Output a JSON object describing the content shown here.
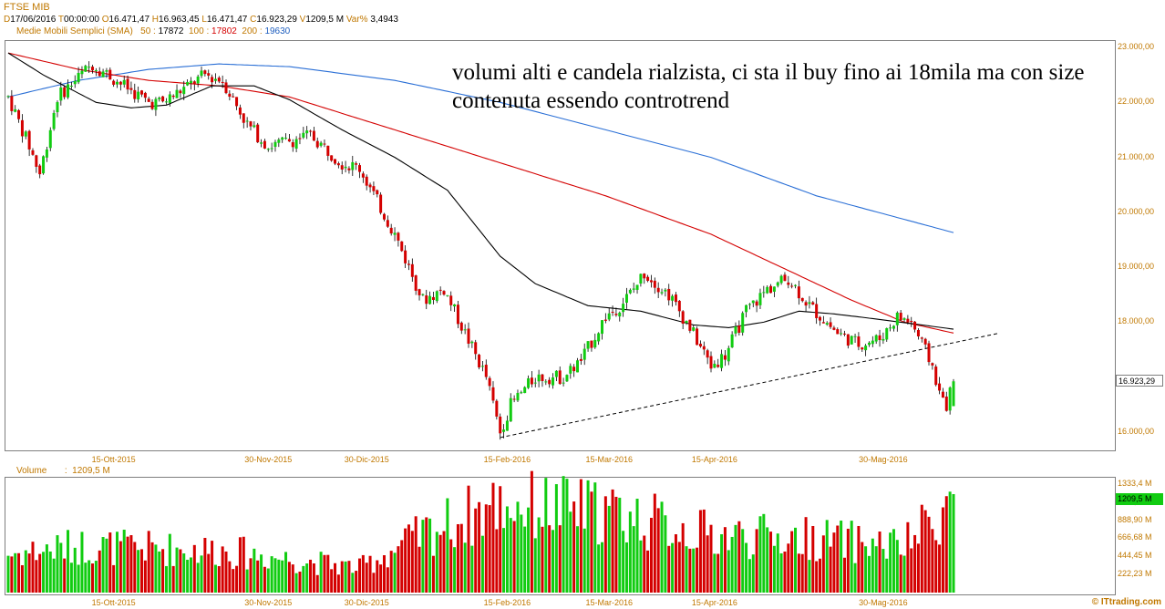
{
  "header": {
    "title": "FTSE MIB",
    "date_key": "D",
    "date": "17/06/2016",
    "time_key": "T",
    "time": "00:00:00",
    "open_key": "O",
    "open": "16.471,47",
    "high_key": "H",
    "high": "16.963,45",
    "low_key": "L",
    "low": "16.471,47",
    "close_key": "C",
    "close": "16.923,29",
    "vol_key": "V",
    "volume": "1209,5 M",
    "var_key": "Var%",
    "var": "3,4943"
  },
  "sma": {
    "label": "Medie Mobili Semplici (SMA)",
    "p50_label": "50 :",
    "p50": "17872",
    "p100_label": "100 :",
    "p100": "17802",
    "p200_label": "200 :",
    "p200": "19630",
    "colors": {
      "sma50": "#000000",
      "sma100": "#d40000",
      "sma200": "#2a6fd6"
    }
  },
  "comment": "volumi alti e candela rialzista, ci sta il buy fino ai 18mila ma con size contenuta essendo controtrend",
  "price_axis": [
    "23.000,00",
    "22.000,00",
    "21.000,00",
    "20.000,00",
    "19.000,00",
    "18.000,00",
    "16.000,00"
  ],
  "last_price": "16.923,29",
  "volume_label": {
    "name": "Volume",
    "sep": ":",
    "value": "1209,5 M"
  },
  "volume_axis": [
    "1333,4 M",
    "1111,1 M",
    "888,90 M",
    "666,68 M",
    "444,45 M",
    "222,23 M"
  ],
  "last_volume": "1209,5 M",
  "x_labels": [
    "15-Ott-2015",
    "30-Nov-2015",
    "30-Dic-2015",
    "15-Feb-2016",
    "15-Mar-2016",
    "15-Apr-2016",
    "30-Mag-2016"
  ],
  "credit": "© ITtrading.com",
  "colors": {
    "up": "#11cc11",
    "down": "#d40000",
    "accent": "#c07800"
  },
  "chart_data": {
    "type": "candlestick",
    "title": "FTSE MIB",
    "y_range": [
      15700,
      23100
    ],
    "volume_range_M": [
      0,
      1400
    ],
    "x_labels": [
      "15-Ott-2015",
      "30-Nov-2015",
      "30-Dic-2015",
      "15-Feb-2016",
      "15-Mar-2016",
      "15-Apr-2016",
      "30-Mag-2016"
    ],
    "last": {
      "date": "17/06/2016",
      "open": 16471.47,
      "high": 16963.45,
      "low": 16471.47,
      "close": 16923.29,
      "volume_M": 1209.5
    },
    "price_anchors": [
      {
        "i": 0,
        "p": 22100
      },
      {
        "i": 6,
        "p": 21200
      },
      {
        "i": 9,
        "p": 20700
      },
      {
        "i": 14,
        "p": 22100
      },
      {
        "i": 24,
        "p": 22700
      },
      {
        "i": 33,
        "p": 22300
      },
      {
        "i": 40,
        "p": 22000
      },
      {
        "i": 44,
        "p": 22000
      },
      {
        "i": 56,
        "p": 22500
      },
      {
        "i": 61,
        "p": 22400
      },
      {
        "i": 68,
        "p": 21600
      },
      {
        "i": 74,
        "p": 21200
      },
      {
        "i": 86,
        "p": 21400
      },
      {
        "i": 95,
        "p": 20900
      },
      {
        "i": 100,
        "p": 20800
      },
      {
        "i": 110,
        "p": 19600
      },
      {
        "i": 118,
        "p": 18400
      },
      {
        "i": 124,
        "p": 18600
      },
      {
        "i": 130,
        "p": 17800
      },
      {
        "i": 136,
        "p": 17000
      },
      {
        "i": 140,
        "p": 16000
      },
      {
        "i": 143,
        "p": 16500
      },
      {
        "i": 150,
        "p": 17000
      },
      {
        "i": 158,
        "p": 17000
      },
      {
        "i": 163,
        "p": 17300
      },
      {
        "i": 170,
        "p": 18100
      },
      {
        "i": 174,
        "p": 18300
      },
      {
        "i": 178,
        "p": 18600
      },
      {
        "i": 181,
        "p": 18900
      },
      {
        "i": 188,
        "p": 18500
      },
      {
        "i": 194,
        "p": 17900
      },
      {
        "i": 200,
        "p": 17200
      },
      {
        "i": 204,
        "p": 17400
      },
      {
        "i": 210,
        "p": 18200
      },
      {
        "i": 216,
        "p": 18600
      },
      {
        "i": 222,
        "p": 18800
      },
      {
        "i": 228,
        "p": 18300
      },
      {
        "i": 236,
        "p": 17800
      },
      {
        "i": 242,
        "p": 17600
      },
      {
        "i": 248,
        "p": 17700
      },
      {
        "i": 253,
        "p": 18100
      },
      {
        "i": 257,
        "p": 18000
      },
      {
        "i": 260,
        "p": 17600
      },
      {
        "i": 263,
        "p": 17200
      },
      {
        "i": 265,
        "p": 16700
      },
      {
        "i": 267,
        "p": 16500
      },
      {
        "i": 269,
        "p": 16900
      }
    ],
    "volume_anchors_M": [
      {
        "i": 0,
        "v": 500
      },
      {
        "i": 20,
        "v": 600
      },
      {
        "i": 60,
        "v": 550
      },
      {
        "i": 100,
        "v": 320
      },
      {
        "i": 120,
        "v": 800
      },
      {
        "i": 140,
        "v": 1150
      },
      {
        "i": 170,
        "v": 1050
      },
      {
        "i": 200,
        "v": 750
      },
      {
        "i": 230,
        "v": 700
      },
      {
        "i": 255,
        "v": 600
      },
      {
        "i": 269,
        "v": 1209.5
      }
    ],
    "sma50_anchors": [
      {
        "i": 0,
        "p": 22900
      },
      {
        "i": 10,
        "p": 22500
      },
      {
        "i": 25,
        "p": 22000
      },
      {
        "i": 35,
        "p": 21900
      },
      {
        "i": 45,
        "p": 21950
      },
      {
        "i": 58,
        "p": 22300
      },
      {
        "i": 70,
        "p": 22300
      },
      {
        "i": 80,
        "p": 22050
      },
      {
        "i": 95,
        "p": 21500
      },
      {
        "i": 110,
        "p": 21000
      },
      {
        "i": 125,
        "p": 20400
      },
      {
        "i": 140,
        "p": 19200
      },
      {
        "i": 150,
        "p": 18700
      },
      {
        "i": 165,
        "p": 18300
      },
      {
        "i": 180,
        "p": 18200
      },
      {
        "i": 195,
        "p": 17950
      },
      {
        "i": 205,
        "p": 17900
      },
      {
        "i": 215,
        "p": 18000
      },
      {
        "i": 225,
        "p": 18200
      },
      {
        "i": 235,
        "p": 18150
      },
      {
        "i": 248,
        "p": 18050
      },
      {
        "i": 260,
        "p": 17950
      },
      {
        "i": 269,
        "p": 17872
      }
    ],
    "sma100_anchors": [
      {
        "i": 0,
        "p": 22900
      },
      {
        "i": 20,
        "p": 22600
      },
      {
        "i": 40,
        "p": 22400
      },
      {
        "i": 60,
        "p": 22300
      },
      {
        "i": 80,
        "p": 22100
      },
      {
        "i": 110,
        "p": 21500
      },
      {
        "i": 140,
        "p": 20900
      },
      {
        "i": 170,
        "p": 20300
      },
      {
        "i": 200,
        "p": 19600
      },
      {
        "i": 220,
        "p": 19000
      },
      {
        "i": 240,
        "p": 18400
      },
      {
        "i": 255,
        "p": 18000
      },
      {
        "i": 269,
        "p": 17802
      }
    ],
    "sma200_anchors": [
      {
        "i": 0,
        "p": 22100
      },
      {
        "i": 20,
        "p": 22400
      },
      {
        "i": 40,
        "p": 22600
      },
      {
        "i": 60,
        "p": 22700
      },
      {
        "i": 80,
        "p": 22650
      },
      {
        "i": 110,
        "p": 22400
      },
      {
        "i": 140,
        "p": 22000
      },
      {
        "i": 170,
        "p": 21500
      },
      {
        "i": 200,
        "p": 21000
      },
      {
        "i": 230,
        "p": 20300
      },
      {
        "i": 269,
        "p": 19630
      }
    ],
    "trendline": {
      "style": "dashed",
      "from": {
        "i": 140,
        "p": 15900
      },
      "to": {
        "i": 282,
        "p": 17800
      }
    }
  }
}
